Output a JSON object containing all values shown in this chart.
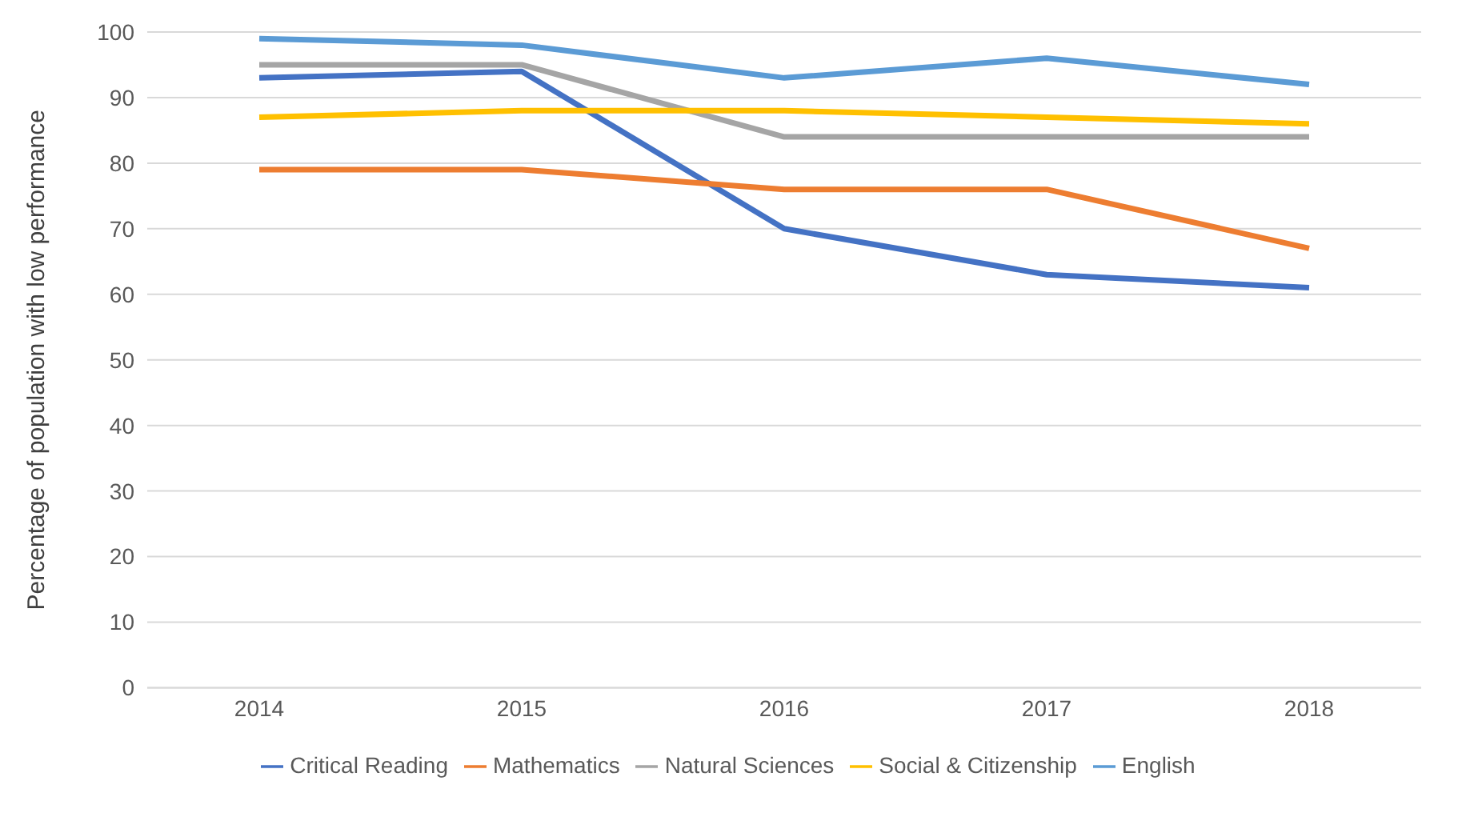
{
  "chart_data": {
    "type": "line",
    "ylabel": "Percentage of population with low performance",
    "categories": [
      "2014",
      "2015",
      "2016",
      "2017",
      "2018"
    ],
    "series": [
      {
        "name": "Critical Reading",
        "color": "#4472c4",
        "values": [
          93,
          94,
          70,
          63,
          61
        ]
      },
      {
        "name": "Mathematics",
        "color": "#ed7d31",
        "values": [
          79,
          79,
          76,
          76,
          67
        ]
      },
      {
        "name": "Natural Sciences",
        "color": "#a5a5a5",
        "values": [
          95,
          95,
          84,
          84,
          84
        ]
      },
      {
        "name": "Social & Citizenship",
        "color": "#ffc000",
        "values": [
          87,
          88,
          88,
          87,
          86
        ]
      },
      {
        "name": "English",
        "color": "#5b9bd5",
        "values": [
          99,
          98,
          93,
          96,
          92
        ]
      }
    ],
    "ylim": [
      0,
      100
    ],
    "yticks": [
      0,
      10,
      20,
      30,
      40,
      50,
      60,
      70,
      80,
      90,
      100
    ],
    "grid": "y",
    "legend": "bottom",
    "marker": "none"
  }
}
